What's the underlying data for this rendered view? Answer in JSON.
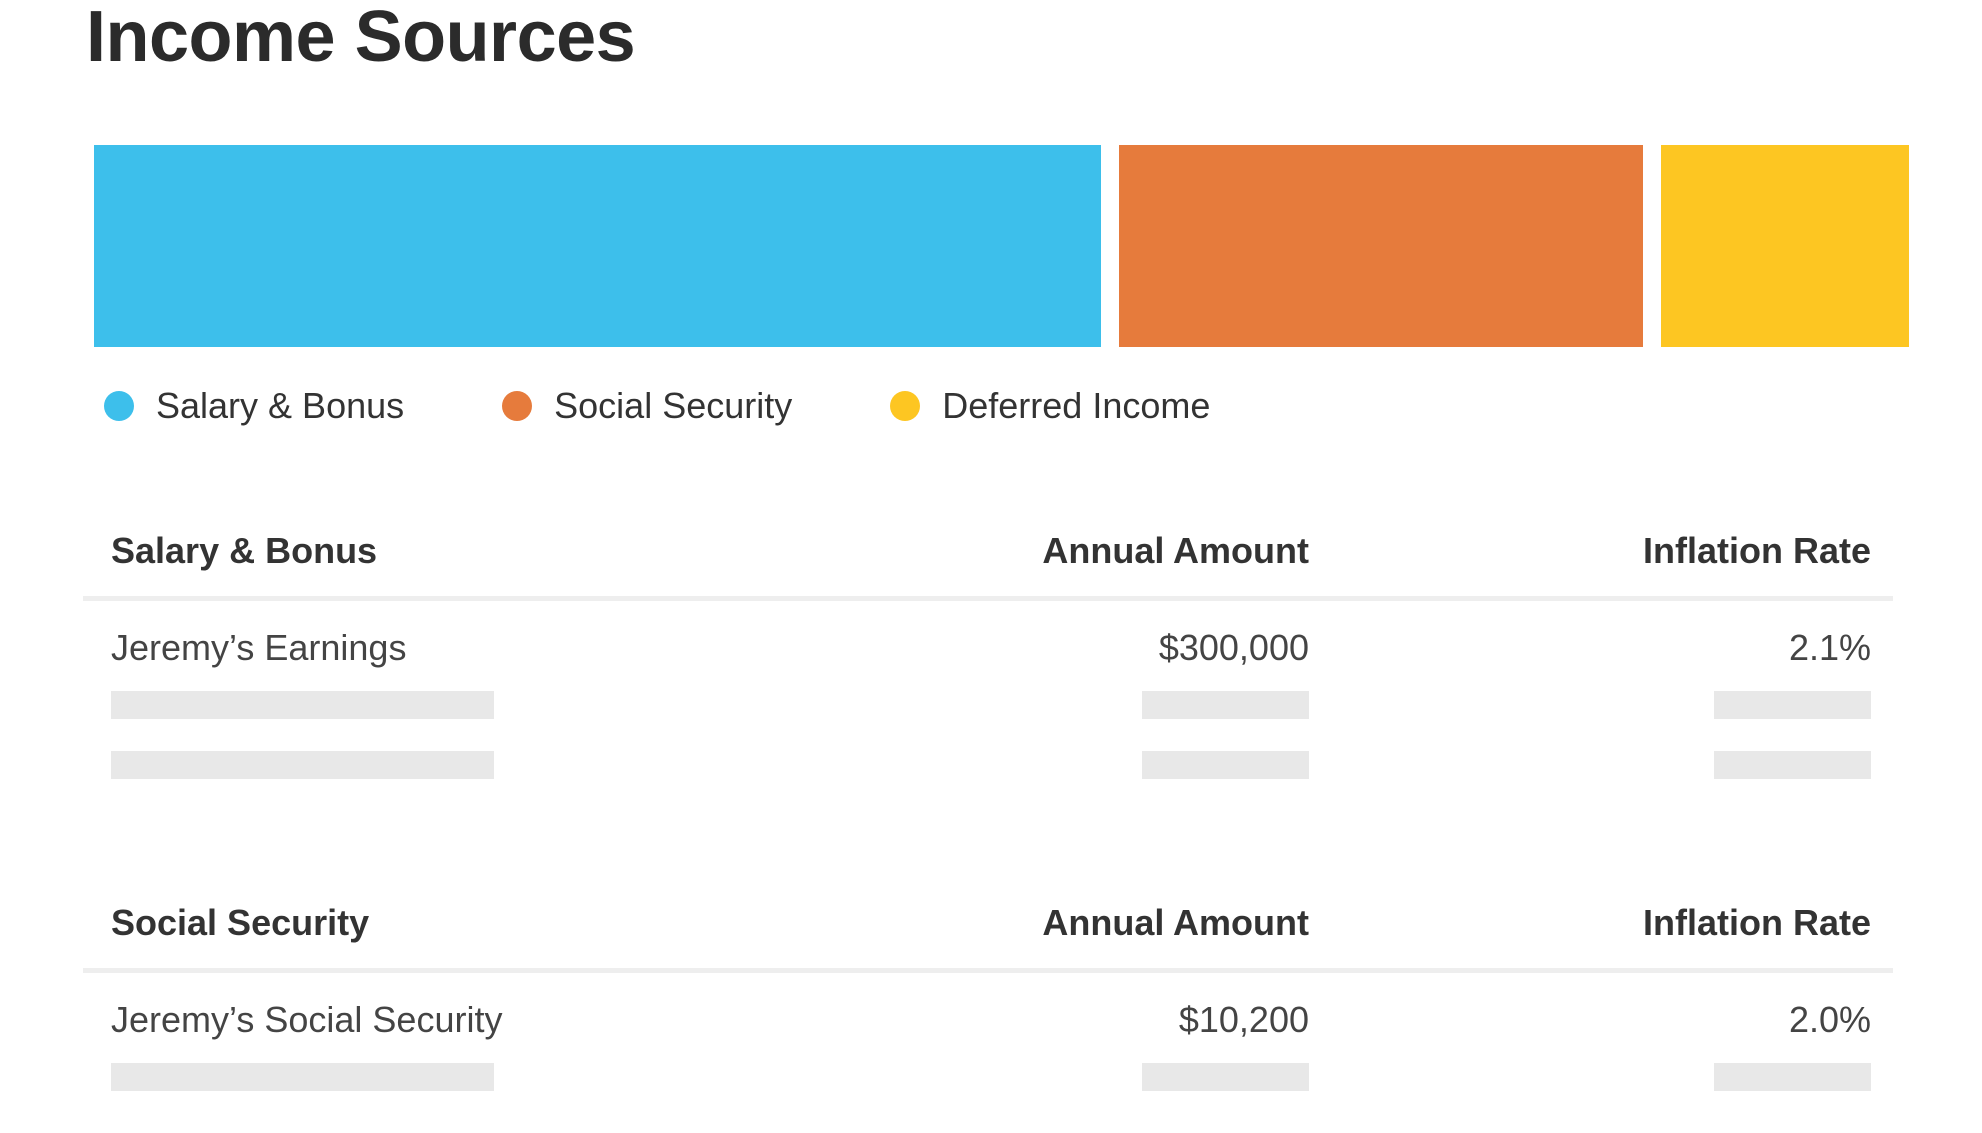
{
  "title": "Income Sources",
  "income_bar": {
    "segments": [
      {
        "name": "Salary & Bonus",
        "share": 0.557,
        "color": "#3dbfeb"
      },
      {
        "name": "Social Security",
        "share": 0.29,
        "color": "#e67b3c"
      },
      {
        "name": "Deferred Income",
        "share": 0.137,
        "color": "#fdc622"
      }
    ]
  },
  "legend": [
    {
      "label": "Salary & Bonus",
      "color": "#3dbfeb"
    },
    {
      "label": "Social Security",
      "color": "#e67b3c"
    },
    {
      "label": "Deferred Income",
      "color": "#fdc622"
    }
  ],
  "sections": [
    {
      "header": {
        "name": "Salary & Bonus",
        "amount": "Annual Amount",
        "rate": "Inflation Rate"
      },
      "rows": [
        {
          "name": "Jeremy’s Earnings",
          "amount": "$300,000",
          "rate": "2.1%"
        }
      ],
      "placeholder_rows": 2
    },
    {
      "header": {
        "name": "Social Security",
        "amount": "Annual Amount",
        "rate": "Inflation Rate"
      },
      "rows": [
        {
          "name": "Jeremy’s Social Security",
          "amount": "$10,200",
          "rate": "2.0%"
        }
      ],
      "placeholder_rows": 1
    }
  ]
}
